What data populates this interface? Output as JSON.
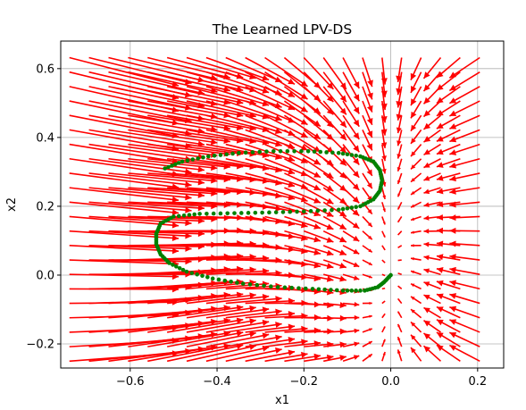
{
  "chart_data": {
    "type": "quiver",
    "title": "The Learned LPV-DS",
    "xlabel": "x1",
    "ylabel": "x2",
    "xlim": [
      -0.76,
      0.26
    ],
    "ylim": [
      -0.27,
      0.68
    ],
    "xticks": [
      -0.6,
      -0.4,
      -0.2,
      0.0,
      0.2
    ],
    "xtick_labels": [
      "−0.6",
      "−0.4",
      "−0.2",
      "0.0",
      "0.2"
    ],
    "yticks": [
      -0.2,
      0.0,
      0.2,
      0.4,
      0.6
    ],
    "ytick_labels": [
      "−0.2",
      "0.0",
      "0.2",
      "0.4",
      "0.6"
    ],
    "grid": true,
    "target": [
      0.0,
      0.0
    ],
    "colors": {
      "field": "#ff0000",
      "trajectory": "#008000"
    },
    "trajectory": [
      [
        -0.52,
        0.31
      ],
      [
        -0.48,
        0.33
      ],
      [
        -0.42,
        0.345
      ],
      [
        -0.35,
        0.355
      ],
      [
        -0.27,
        0.36
      ],
      [
        -0.19,
        0.36
      ],
      [
        -0.12,
        0.355
      ],
      [
        -0.07,
        0.345
      ],
      [
        -0.04,
        0.33
      ],
      [
        -0.025,
        0.305
      ],
      [
        -0.02,
        0.275
      ],
      [
        -0.025,
        0.245
      ],
      [
        -0.04,
        0.22
      ],
      [
        -0.07,
        0.2
      ],
      [
        -0.12,
        0.19
      ],
      [
        -0.2,
        0.185
      ],
      [
        -0.28,
        0.182
      ],
      [
        -0.36,
        0.18
      ],
      [
        -0.44,
        0.178
      ],
      [
        -0.5,
        0.17
      ],
      [
        -0.53,
        0.15
      ],
      [
        -0.54,
        0.12
      ],
      [
        -0.54,
        0.09
      ],
      [
        -0.53,
        0.06
      ],
      [
        -0.51,
        0.035
      ],
      [
        -0.47,
        0.01
      ],
      [
        -0.41,
        -0.01
      ],
      [
        -0.34,
        -0.025
      ],
      [
        -0.26,
        -0.035
      ],
      [
        -0.18,
        -0.04
      ],
      [
        -0.11,
        -0.045
      ],
      [
        -0.06,
        -0.045
      ],
      [
        -0.03,
        -0.035
      ],
      [
        -0.015,
        -0.02
      ],
      [
        0.0,
        0.0
      ]
    ]
  }
}
